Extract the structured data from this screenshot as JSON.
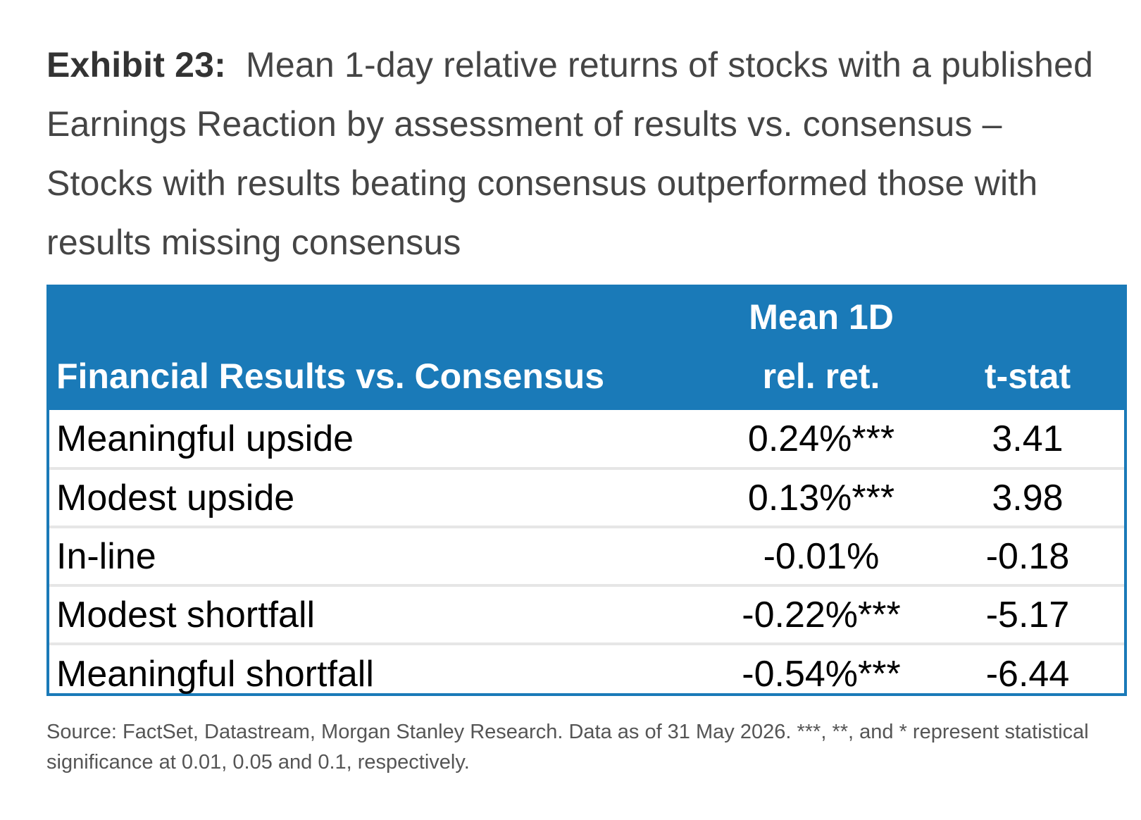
{
  "exhibit": {
    "label": "Exhibit 23:",
    "title": "Mean 1-day relative returns of stocks with a published Earnings Reaction by assessment of results vs. consensus – Stocks with results beating consensus outperformed those with results missing consensus"
  },
  "table": {
    "headers": {
      "col1": "Financial Results vs. Consensus",
      "col2_line1": "Mean 1D",
      "col2_line2": "rel. ret.",
      "col3": "t-stat"
    },
    "rows": [
      {
        "label": "Meaningful upside",
        "mean_rel_ret": "0.24%***",
        "t_stat": "3.41"
      },
      {
        "label": "Modest upside",
        "mean_rel_ret": "0.13%***",
        "t_stat": "3.98"
      },
      {
        "label": "In-line",
        "mean_rel_ret": "-0.01%",
        "t_stat": "-0.18"
      },
      {
        "label": "Modest shortfall",
        "mean_rel_ret": "-0.22%***",
        "t_stat": "-5.17"
      },
      {
        "label": "Meaningful shortfall",
        "mean_rel_ret": "-0.54%***",
        "t_stat": "-6.44"
      }
    ]
  },
  "source": "Source: FactSet, Datastream, Morgan Stanley Research. Data as of 31 May 2026. ***, **, and * represent statistical significance at 0.01, 0.05 and 0.1, respectively.",
  "colors": {
    "header_blue": "#1a7ab8",
    "row_divider": "#e6e6e6",
    "heading_text": "#454545",
    "source_text": "#555555"
  }
}
